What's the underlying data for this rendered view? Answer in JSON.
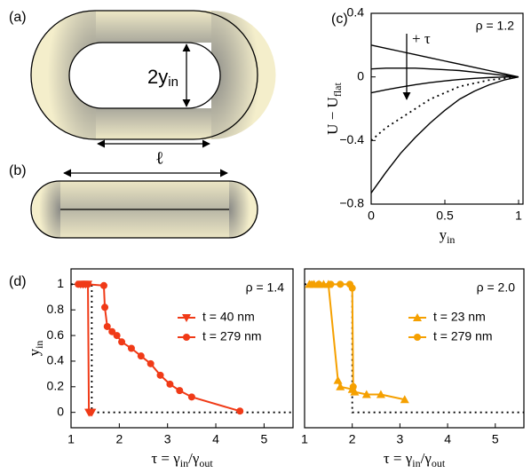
{
  "diagrams": {
    "a": {
      "label": "(a)",
      "width_label": [
        "2y",
        "in"
      ]
    },
    "b": {
      "label": "(b)",
      "length_label": "ℓ"
    }
  },
  "chart_data": [
    {
      "type": "line",
      "panel_label": "(c)",
      "annotation": "ρ = 1.2",
      "arrow_label": "+ τ",
      "xlabel": [
        "y",
        "in"
      ],
      "ylabel": [
        "U − U",
        "flat"
      ],
      "x": [
        0,
        0.1,
        0.2,
        0.3,
        0.4,
        0.5,
        0.6,
        0.7,
        0.8,
        0.9,
        1
      ],
      "xlim": [
        0,
        1.03
      ],
      "ylim": [
        -0.8,
        0.4
      ],
      "xticks": [
        0,
        0.5,
        1
      ],
      "yticks": [
        {
          "value": -0.8,
          "label": "−0.8"
        },
        {
          "value": -0.4,
          "label": "−0.4"
        },
        0,
        0.4
      ],
      "series": [
        {
          "color": "#000000",
          "style": "solid",
          "values": [
            0.2,
            0.18,
            0.16,
            0.14,
            0.12,
            0.1,
            0.08,
            0.06,
            0.04,
            0.02,
            0
          ]
        },
        {
          "color": "#000000",
          "style": "solid",
          "values": [
            0.05,
            0.055,
            0.055,
            0.055,
            0.05,
            0.045,
            0.04,
            0.03,
            0.02,
            0.01,
            0
          ]
        },
        {
          "color": "#000000",
          "style": "solid",
          "values": [
            -0.1,
            -0.081,
            -0.064,
            -0.049,
            -0.036,
            -0.025,
            -0.016,
            -0.009,
            -0.004,
            -0.001,
            0
          ]
        },
        {
          "color": "#000000",
          "style": "dotted",
          "values": [
            -0.4,
            -0.32,
            -0.26,
            -0.2,
            -0.14,
            -0.1,
            -0.06,
            -0.04,
            -0.02,
            -0.01,
            0
          ]
        },
        {
          "color": "#000000",
          "style": "solid",
          "values": [
            -0.73,
            -0.6,
            -0.48,
            -0.38,
            -0.29,
            -0.21,
            -0.14,
            -0.09,
            -0.05,
            -0.02,
            0
          ]
        }
      ]
    },
    {
      "type": "scatter",
      "panel_label": "(d)",
      "annotation": "ρ = 1.4",
      "xlabel": [
        "τ = γ",
        "in",
        "/γ",
        "out"
      ],
      "ylabel": [
        "y",
        "in"
      ],
      "xlim": [
        1,
        5.6
      ],
      "ylim": [
        -0.12,
        1.12
      ],
      "xticks": [
        1,
        2,
        3,
        4,
        5
      ],
      "yticks": [
        0,
        0.2,
        0.4,
        0.6,
        0.8,
        1
      ],
      "series": [
        {
          "color": "#000000",
          "style": "dotted",
          "x": [
            1,
            1.43,
            1.43,
            5.6
          ],
          "values": [
            1,
            1,
            0,
            0
          ]
        },
        {
          "name": "t = 40 nm",
          "color": "#f03a17",
          "style": "solid",
          "marker": "triangle",
          "x": [
            1.2,
            1.25,
            1.3,
            1.35,
            1.37,
            1.4,
            1.43
          ],
          "values": [
            1,
            1,
            1,
            1,
            0,
            0,
            0
          ]
        },
        {
          "name": "t = 279 nm",
          "color": "#f03a17",
          "style": "solid",
          "marker": "circle",
          "x": [
            1.15,
            1.25,
            1.35,
            1.68,
            1.7,
            1.75,
            1.85,
            1.95,
            2.05,
            2.25,
            2.45,
            2.65,
            2.85,
            3.05,
            3.25,
            3.5,
            4.5
          ],
          "values": [
            1,
            1,
            1,
            0.99,
            0.82,
            0.67,
            0.63,
            0.6,
            0.55,
            0.5,
            0.44,
            0.38,
            0.29,
            0.22,
            0.17,
            0.12,
            0.01
          ]
        }
      ]
    },
    {
      "type": "scatter",
      "annotation": "ρ = 2.0",
      "xlabel": [
        "τ = γ",
        "in",
        "/γ",
        "out"
      ],
      "xlim": [
        1,
        5.6
      ],
      "ylim": [
        -0.12,
        1.12
      ],
      "xticks": [
        1,
        2,
        3,
        4,
        5
      ],
      "series": [
        {
          "color": "#000000",
          "style": "dotted",
          "x": [
            1,
            2,
            2,
            5.6
          ],
          "values": [
            1,
            1,
            0,
            0
          ]
        },
        {
          "name": "t = 23 nm",
          "color": "#f5a000",
          "style": "solid",
          "marker": "triangle",
          "x": [
            1.1,
            1.2,
            1.3,
            1.4,
            1.5,
            1.7,
            1.75,
            2.0,
            2.05,
            2.3,
            2.6,
            3.1
          ],
          "values": [
            1,
            1,
            1,
            1,
            1,
            0.25,
            0.2,
            0.18,
            0.16,
            0.14,
            0.14,
            0.1
          ]
        },
        {
          "name": "t = 279 nm",
          "color": "#f5a000",
          "style": "solid",
          "marker": "circle",
          "x": [
            1.15,
            1.3,
            1.55,
            1.75,
            1.95,
            2.0,
            2.02
          ],
          "values": [
            1,
            1,
            1,
            1,
            1,
            0.97,
            0.2
          ]
        }
      ]
    }
  ]
}
